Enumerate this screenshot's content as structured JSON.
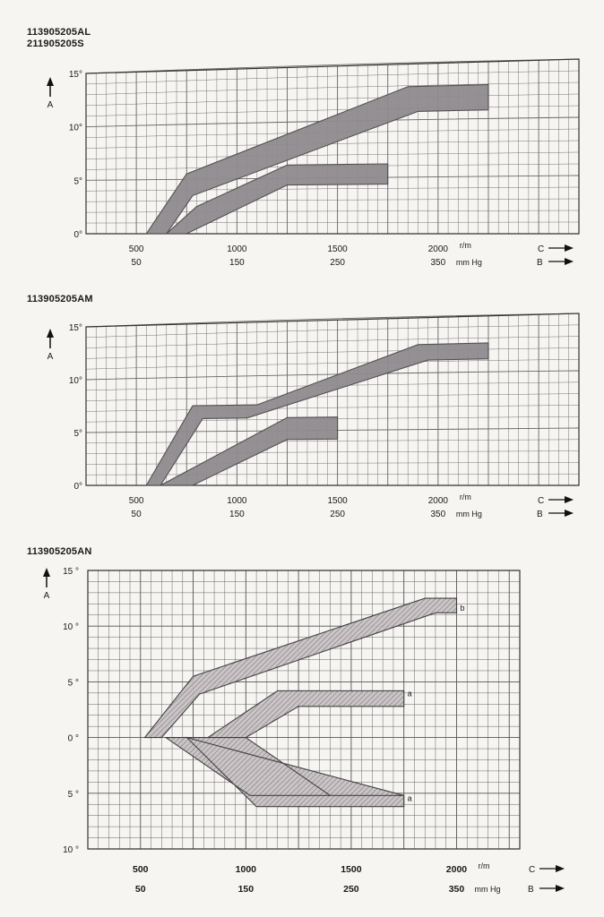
{
  "chart_data": [
    {
      "type": "area",
      "title_lines": [
        "113905205AL",
        "211905205S"
      ],
      "y_axis_label": "A",
      "y_ticks": [
        {
          "value": 15,
          "label": "15°"
        },
        {
          "value": 10,
          "label": "10°"
        },
        {
          "value": 5,
          "label": "5°"
        },
        {
          "value": 0,
          "label": "0°"
        }
      ],
      "ylim": [
        0,
        15
      ],
      "x_ticks_rpm": [
        "500",
        "1000",
        "1500",
        "2000"
      ],
      "x_ticks_mmhg": [
        "50",
        "150",
        "250",
        "350"
      ],
      "x_tick_values": [
        500,
        1000,
        1500,
        2000
      ],
      "xlim": [
        250,
        2700
      ],
      "unit_rpm": "r/m",
      "unit_mmhg": "mm Hg",
      "axis_c": "C",
      "axis_b": "B",
      "series": [
        {
          "name": "upper band",
          "upper": [
            [
              550,
              0
            ],
            [
              750,
              5.5
            ],
            [
              1850,
              13.0
            ],
            [
              2250,
              13.0
            ]
          ],
          "lower": [
            [
              650,
              0
            ],
            [
              780,
              3.5
            ],
            [
              1900,
              10.8
            ],
            [
              2250,
              10.8
            ]
          ]
        },
        {
          "name": "lower band",
          "upper": [
            [
              650,
              0
            ],
            [
              800,
              2.5
            ],
            [
              1250,
              6.2
            ],
            [
              1750,
              6.2
            ]
          ],
          "lower": [
            [
              750,
              0
            ],
            [
              1250,
              4.4
            ],
            [
              1750,
              4.4
            ]
          ]
        }
      ]
    },
    {
      "type": "area",
      "title_lines": [
        "113905205AM"
      ],
      "y_axis_label": "A",
      "y_ticks": [
        {
          "value": 15,
          "label": "15°"
        },
        {
          "value": 10,
          "label": "10°"
        },
        {
          "value": 5,
          "label": "5°"
        },
        {
          "value": 0,
          "label": "0°"
        }
      ],
      "ylim": [
        0,
        15
      ],
      "x_ticks_rpm": [
        "500",
        "1000",
        "1500",
        "2000"
      ],
      "x_ticks_mmhg": [
        "50",
        "150",
        "250",
        "350"
      ],
      "x_tick_values": [
        500,
        1000,
        1500,
        2000
      ],
      "xlim": [
        250,
        2700
      ],
      "unit_rpm": "r/m",
      "unit_mmhg": "mm Hg",
      "axis_c": "C",
      "axis_b": "B",
      "series": [
        {
          "name": "upper band",
          "upper": [
            [
              550,
              0
            ],
            [
              780,
              7.4
            ],
            [
              1100,
              7.4
            ],
            [
              1900,
              12.6
            ],
            [
              2250,
              12.6
            ]
          ],
          "lower": [
            [
              620,
              0
            ],
            [
              830,
              6.2
            ],
            [
              1050,
              6.2
            ],
            [
              1950,
              11.2
            ],
            [
              2250,
              11.2
            ]
          ]
        },
        {
          "name": "lower band",
          "upper": [
            [
              620,
              0
            ],
            [
              1250,
              6.2
            ],
            [
              1500,
              6.2
            ]
          ],
          "lower": [
            [
              780,
              0
            ],
            [
              1250,
              4.2
            ],
            [
              1500,
              4.2
            ]
          ]
        }
      ]
    },
    {
      "type": "area",
      "title_lines": [
        "113905205AN"
      ],
      "y_axis_label": "A",
      "y_ticks": [
        {
          "value": 15,
          "label": "15 °"
        },
        {
          "value": 10,
          "label": "10 °"
        },
        {
          "value": 5,
          "label": "5 °"
        },
        {
          "value": 0,
          "label": "0 °"
        },
        {
          "value": -5,
          "label": "5 °"
        },
        {
          "value": -10,
          "label": "10 °"
        }
      ],
      "ylim": [
        -10,
        15
      ],
      "x_ticks_rpm": [
        "500",
        "1000",
        "1500",
        "2000"
      ],
      "x_ticks_mmhg": [
        "50",
        "150",
        "250",
        "350"
      ],
      "x_tick_values": [
        500,
        1000,
        1500,
        2000
      ],
      "xlim": [
        250,
        2300
      ],
      "unit_rpm": "r/m",
      "unit_mmhg": "mm Hg",
      "axis_c": "C",
      "axis_b": "B",
      "series": [
        {
          "name": "b",
          "label": "b",
          "upper": [
            [
              520,
              0
            ],
            [
              750,
              5.5
            ],
            [
              1850,
              12.5
            ],
            [
              2000,
              12.5
            ]
          ],
          "lower": [
            [
              600,
              0
            ],
            [
              780,
              3.9
            ],
            [
              1900,
              11.2
            ],
            [
              2000,
              11.2
            ]
          ]
        },
        {
          "name": "a (advance)",
          "label": "a",
          "upper": [
            [
              820,
              0
            ],
            [
              1150,
              4.2
            ],
            [
              1750,
              4.2
            ]
          ],
          "lower": [
            [
              1000,
              0
            ],
            [
              1250,
              2.8
            ],
            [
              1750,
              2.8
            ]
          ]
        },
        {
          "name": "a (retard)",
          "label": "a",
          "upper": [
            [
              620,
              0
            ],
            [
              1020,
              -5.2
            ],
            [
              1050,
              -5.2
            ],
            [
              1750,
              -5.2
            ]
          ],
          "lower": [
            [
              1000,
              0
            ],
            [
              1400,
              -5.2
            ],
            [
              1750,
              -5.2
            ],
            [
              1750,
              -6.2
            ],
            [
              1050,
              -6.2
            ],
            [
              720,
              0
            ]
          ]
        }
      ]
    }
  ]
}
